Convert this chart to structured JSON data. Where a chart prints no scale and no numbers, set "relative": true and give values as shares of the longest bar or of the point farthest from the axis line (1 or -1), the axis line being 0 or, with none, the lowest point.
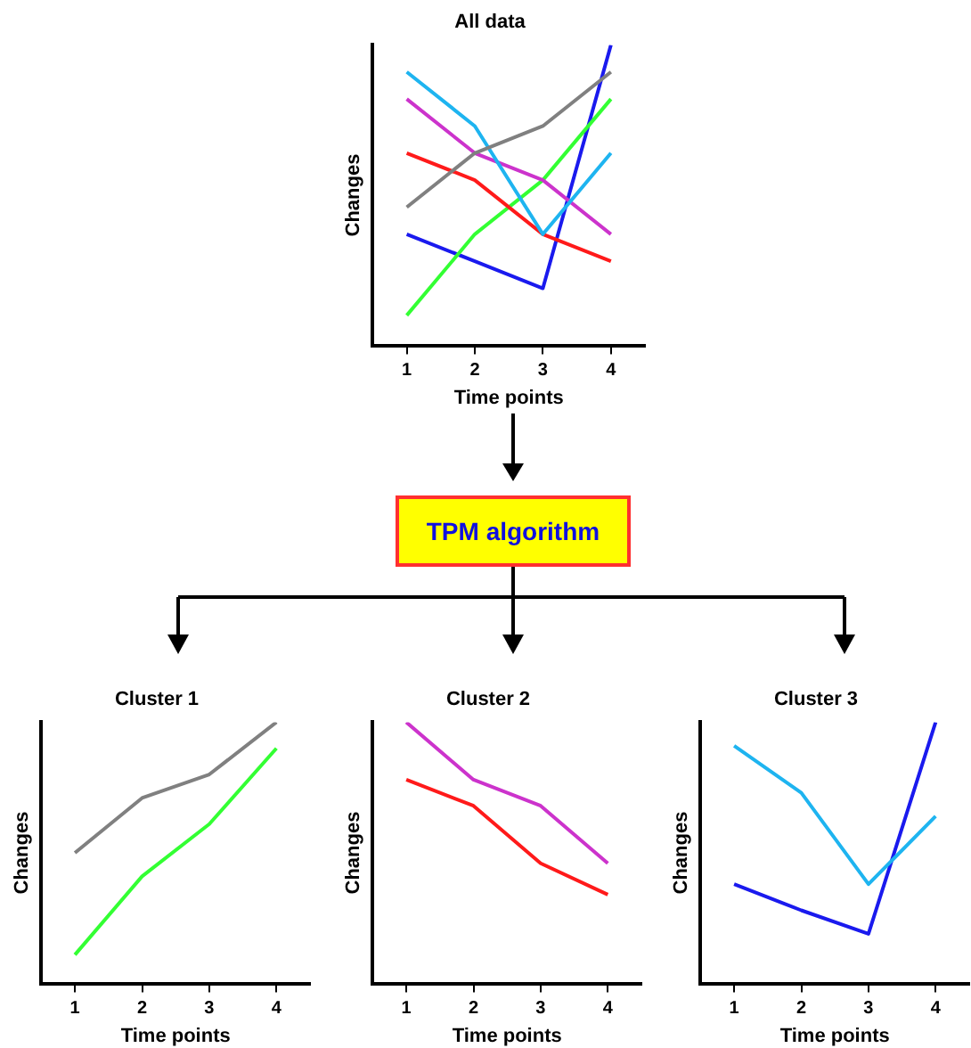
{
  "chart_data": [
    {
      "type": "line",
      "title": "All data",
      "xlabel": "Time points",
      "ylabel": "Changes",
      "categories": [
        "1",
        "2",
        "3",
        "4"
      ],
      "relative": true,
      "legend": false,
      "grid": false,
      "marker": "none",
      "series": [
        {
          "color": "#808080",
          "values": [
            0.46,
            0.64,
            0.73,
            0.91
          ]
        },
        {
          "color": "#1eb4f0",
          "values": [
            0.91,
            0.73,
            0.37,
            0.64
          ]
        },
        {
          "color": "#cc33cc",
          "values": [
            0.82,
            0.64,
            0.55,
            0.37
          ]
        },
        {
          "color": "#ff1a1a",
          "values": [
            0.64,
            0.55,
            0.37,
            0.28
          ]
        },
        {
          "color": "#33ff33",
          "values": [
            0.1,
            0.37,
            0.55,
            0.82
          ]
        },
        {
          "color": "#1a1aee",
          "values": [
            0.37,
            0.28,
            0.19,
            1
          ]
        }
      ]
    },
    {
      "type": "other",
      "title": "TPM algorithm"
    },
    {
      "type": "line",
      "title": "Cluster 1",
      "xlabel": "Time points",
      "ylabel": "Changes",
      "categories": [
        "1",
        "2",
        "3",
        "4"
      ],
      "relative": true,
      "legend": false,
      "grid": false,
      "marker": "none",
      "series": [
        {
          "color": "#808080",
          "values": [
            0.5,
            0.71,
            0.8,
            1
          ]
        },
        {
          "color": "#33ff33",
          "values": [
            0.11,
            0.41,
            0.61,
            0.9
          ]
        }
      ]
    },
    {
      "type": "line",
      "title": "Cluster 2",
      "xlabel": "Time points",
      "ylabel": "Changes",
      "categories": [
        "1",
        "2",
        "3",
        "4"
      ],
      "relative": true,
      "legend": false,
      "grid": false,
      "marker": "none",
      "series": [
        {
          "color": "#cc33cc",
          "values": [
            1,
            0.78,
            0.68,
            0.46
          ]
        },
        {
          "color": "#ff1a1a",
          "values": [
            0.78,
            0.68,
            0.46,
            0.34
          ]
        }
      ]
    },
    {
      "type": "line",
      "title": "Cluster 3",
      "xlabel": "Time points",
      "ylabel": "Changes",
      "categories": [
        "1",
        "2",
        "3",
        "4"
      ],
      "relative": true,
      "legend": false,
      "grid": false,
      "marker": "none",
      "series": [
        {
          "color": "#1eb4f0",
          "values": [
            0.91,
            0.73,
            0.38,
            0.64
          ]
        },
        {
          "color": "#1a1aee",
          "values": [
            0.38,
            0.28,
            0.19,
            1
          ]
        }
      ]
    }
  ]
}
